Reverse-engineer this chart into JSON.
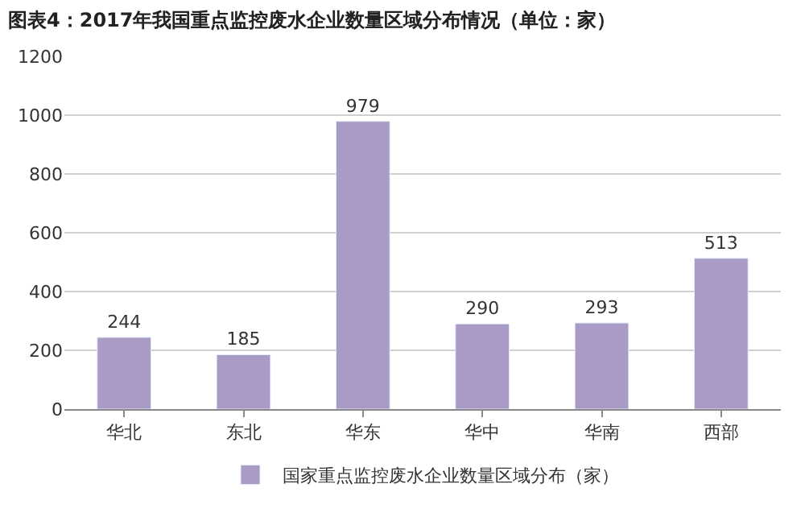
{
  "chart_data": {
    "type": "bar",
    "title": "图表4：2017年我国重点监控废水企业数量区域分布情况（单位：家）",
    "categories": [
      "华北",
      "东北",
      "华东",
      "华中",
      "华南",
      "西部"
    ],
    "series": [
      {
        "name": "国家重点监控废水企业数量区域分布（家）",
        "color": "#a99bc6",
        "values": [
          244,
          185,
          979,
          290,
          293,
          513
        ]
      }
    ],
    "ylim": [
      0,
      1200
    ],
    "yticks": [
      0,
      200,
      400,
      600,
      800,
      1000,
      1200
    ],
    "grid": "y",
    "legend": "bottom",
    "data_labels": true
  }
}
